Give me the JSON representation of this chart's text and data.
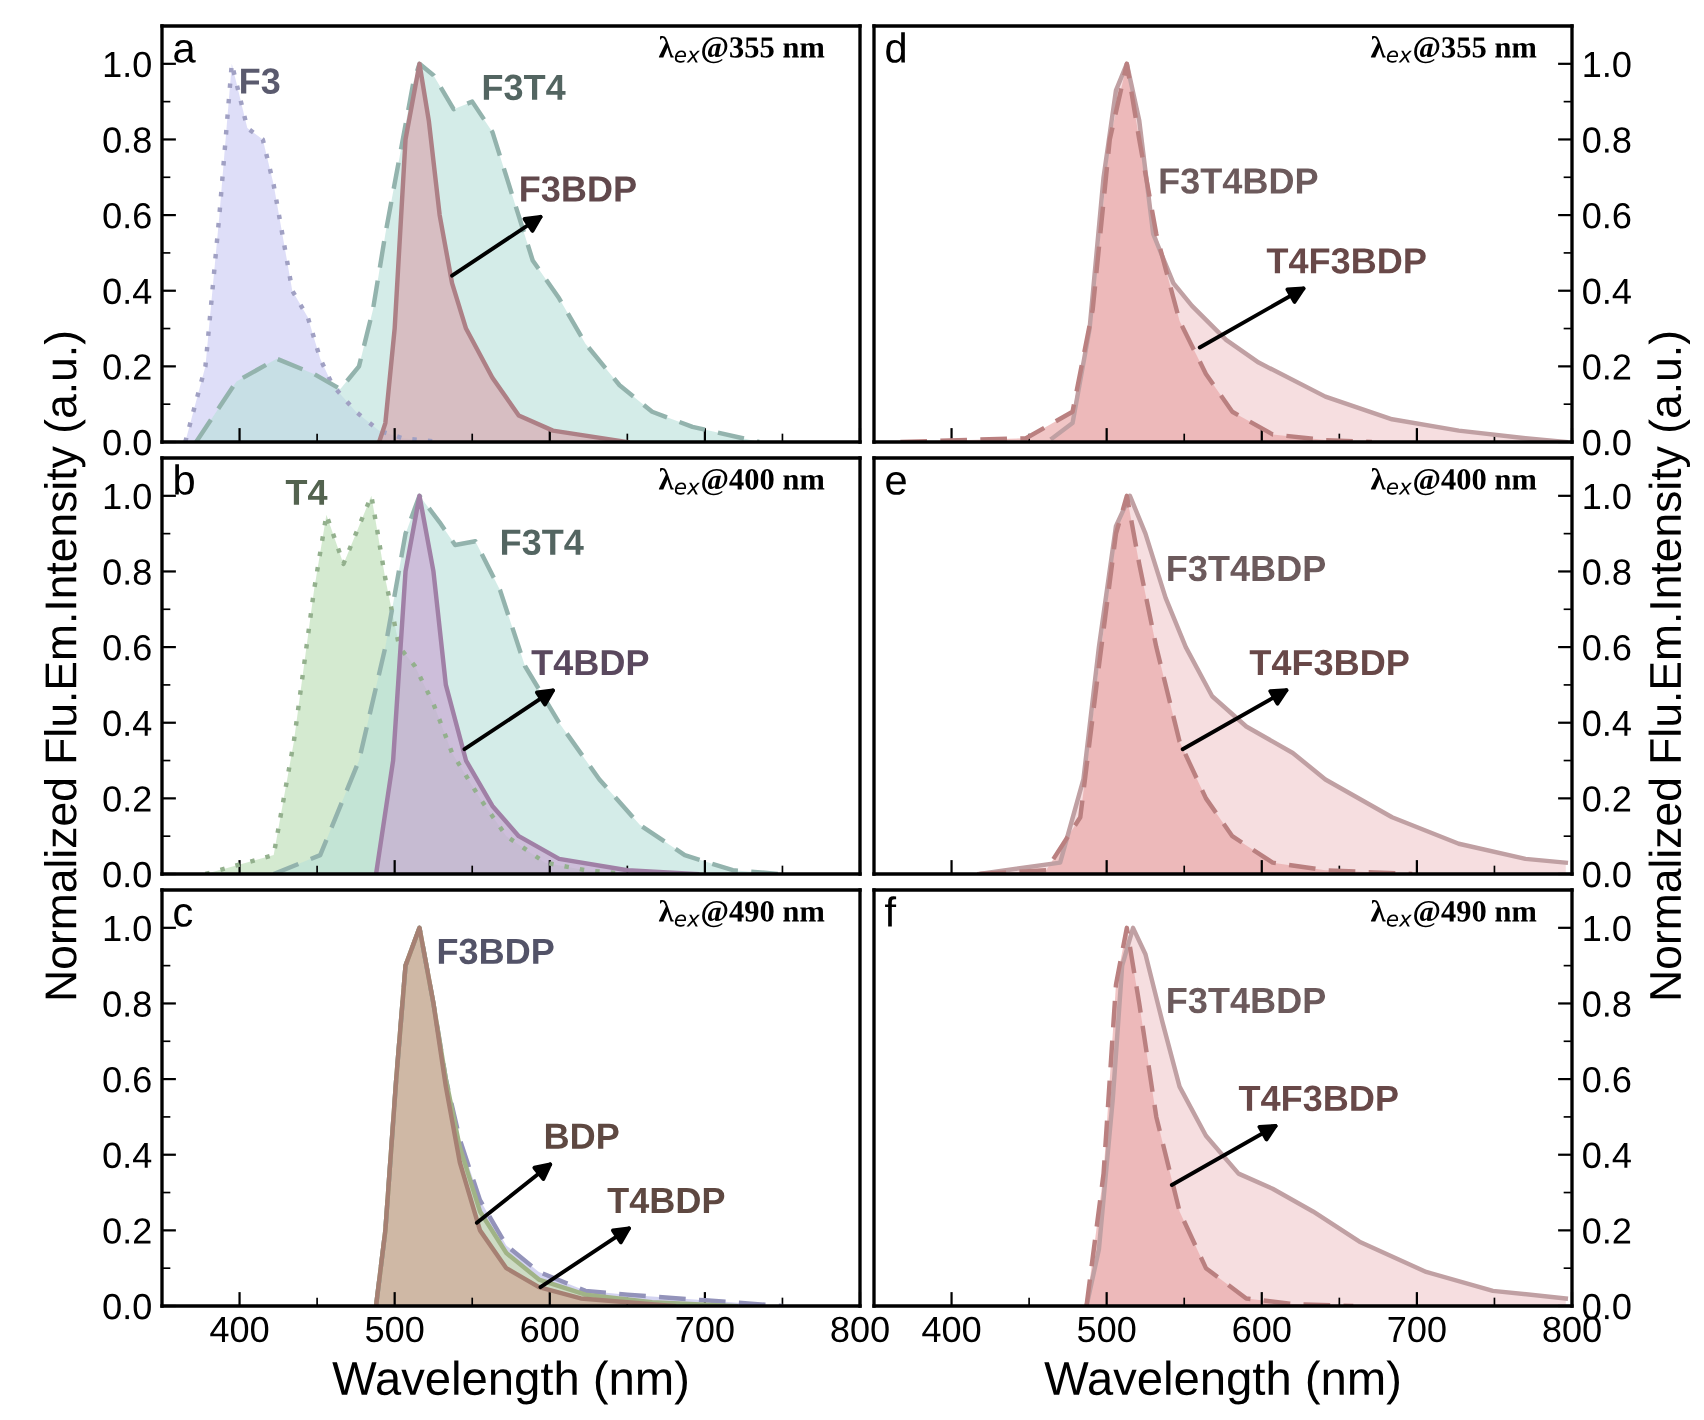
{
  "chart_data": [
    {
      "type": "area",
      "xlim": [
        350,
        800
      ],
      "ylim": [
        0,
        1.1
      ],
      "tick_labels": "y",
      "xticks": [
        400,
        {
          "value": 450,
          "label": null
        },
        500,
        {
          "value": 550,
          "label": null
        },
        600,
        {
          "value": 650,
          "label": null
        },
        700,
        {
          "value": 750,
          "label": null
        },
        800
      ],
      "yticks": [
        {
          "value": 0,
          "label": "0.0"
        },
        {
          "value": 0.1,
          "label": null
        },
        {
          "value": 0.2,
          "label": "0.2"
        },
        {
          "value": 0.3,
          "label": null
        },
        {
          "value": 0.4,
          "label": "0.4"
        },
        {
          "value": 0.5,
          "label": null
        },
        {
          "value": 0.6,
          "label": "0.6"
        },
        {
          "value": 0.7,
          "label": null
        },
        {
          "value": 0.8,
          "label": "0.8"
        },
        {
          "value": 0.9,
          "label": null
        },
        {
          "value": 1.0,
          "label": "1.0"
        }
      ],
      "series": [
        {
          "name": "F3",
          "color": "#c8c8f4",
          "line_style": "dotted",
          "x": [
            365,
            378,
            387,
            395,
            405,
            415,
            422,
            434,
            444,
            452,
            460,
            475,
            490,
            505,
            530
          ],
          "values": [
            0,
            0.2,
            0.6,
            1.0,
            0.83,
            0.8,
            0.68,
            0.4,
            0.33,
            0.22,
            0.15,
            0.08,
            0.03,
            0.01,
            0
          ]
        },
        {
          "name": "F3T4",
          "color": "#b8e0d8",
          "line_style": "dashed",
          "x": [
            372,
            398,
            424,
            448,
            465,
            477,
            486,
            494,
            503,
            512,
            516,
            525,
            538,
            550,
            563,
            576,
            589,
            606,
            623,
            645,
            666,
            692,
            735
          ],
          "values": [
            0,
            0.16,
            0.22,
            0.18,
            0.14,
            0.2,
            0.35,
            0.55,
            0.75,
            0.95,
            1.0,
            0.97,
            0.88,
            0.9,
            0.82,
            0.65,
            0.48,
            0.38,
            0.26,
            0.15,
            0.08,
            0.04,
            0
          ]
        },
        {
          "color": "#d8a0a8",
          "line_style": "solid",
          "x": [
            490,
            494,
            500,
            507,
            516,
            522,
            529,
            537,
            546,
            563,
            580,
            602,
            650
          ],
          "values": [
            0,
            0.05,
            0.3,
            0.8,
            1.0,
            0.85,
            0.6,
            0.42,
            0.3,
            0.17,
            0.07,
            0.03,
            0
          ]
        }
      ],
      "annotations": [
        "a",
        "λ$_{ex}$@355 nm",
        {
          "text": "F3BDP",
          "x": 537,
          "y": 0.44
        }
      ]
    },
    {
      "type": "area",
      "xlim": [
        350,
        800
      ],
      "ylim": [
        0,
        1.1
      ],
      "tick_labels": "y",
      "ylabel": "Normalized Flu.Em.Intensity (a.u.)",
      "xticks": [
        400,
        {
          "value": 450,
          "label": null
        },
        500,
        {
          "value": 550,
          "label": null
        },
        600,
        {
          "value": 650,
          "label": null
        },
        700,
        {
          "value": 750,
          "label": null
        },
        800
      ],
      "yticks": [
        {
          "value": 0,
          "label": "0.0"
        },
        {
          "value": 0.1,
          "label": null
        },
        {
          "value": 0.2,
          "label": "0.2"
        },
        {
          "value": 0.3,
          "label": null
        },
        {
          "value": 0.4,
          "label": "0.4"
        },
        {
          "value": 0.5,
          "label": null
        },
        {
          "value": 0.6,
          "label": "0.6"
        },
        {
          "value": 0.7,
          "label": null
        },
        {
          "value": 0.8,
          "label": "0.8"
        },
        {
          "value": 0.9,
          "label": null
        },
        {
          "value": 1.0,
          "label": "1.0"
        }
      ],
      "series": [
        {
          "name": "T4",
          "color": "#b8dcb0",
          "line_style": "dotted",
          "x": [
            378,
            422,
            435,
            448,
            456,
            467,
            475,
            485,
            494,
            503,
            513,
            525,
            537,
            555,
            572,
            597,
            623,
            650
          ],
          "values": [
            0,
            0.05,
            0.35,
            0.75,
            0.95,
            0.82,
            0.9,
            1.0,
            0.78,
            0.6,
            0.55,
            0.45,
            0.32,
            0.2,
            0.1,
            0.03,
            0.01,
            0
          ]
        },
        {
          "name": "F3T4",
          "color": "#b8e0d8",
          "line_style": "dashed",
          "x": [
            422,
            452,
            477,
            494,
            507,
            516,
            529,
            539,
            552,
            568,
            584,
            606,
            632,
            658,
            687,
            718,
            748
          ],
          "values": [
            0,
            0.05,
            0.3,
            0.6,
            0.9,
            1.0,
            0.93,
            0.87,
            0.88,
            0.75,
            0.55,
            0.4,
            0.25,
            0.13,
            0.05,
            0.01,
            0
          ]
        },
        {
          "color": "#c8a0d0",
          "line_style": "solid",
          "x": [
            488,
            499,
            507,
            516,
            525,
            533,
            546,
            563,
            580,
            606,
            650,
            695
          ],
          "values": [
            0,
            0.3,
            0.8,
            1.0,
            0.8,
            0.5,
            0.3,
            0.18,
            0.1,
            0.04,
            0.01,
            0
          ]
        }
      ],
      "annotations": [
        "b",
        "λ$_{ex}$@400 nm",
        {
          "text": "T4BDP",
          "x": 545,
          "y": 0.33
        }
      ]
    },
    {
      "type": "area",
      "xlim": [
        350,
        800
      ],
      "ylim": [
        0,
        1.1
      ],
      "xlabel": "Wavelength (nm)",
      "xticks": [
        400,
        {
          "value": 450,
          "label": null
        },
        500,
        {
          "value": 550,
          "label": null
        },
        600,
        {
          "value": 650,
          "label": null
        },
        700,
        {
          "value": 750,
          "label": null
        },
        800
      ],
      "yticks": [
        {
          "value": 0,
          "label": "0.0"
        },
        {
          "value": 0.1,
          "label": null
        },
        {
          "value": 0.2,
          "label": "0.2"
        },
        {
          "value": 0.3,
          "label": null
        },
        {
          "value": 0.4,
          "label": "0.4"
        },
        {
          "value": 0.5,
          "label": null
        },
        {
          "value": 0.6,
          "label": "0.6"
        },
        {
          "value": 0.7,
          "label": null
        },
        {
          "value": 0.8,
          "label": "0.8"
        },
        {
          "value": 0.9,
          "label": null
        },
        {
          "value": 1.0,
          "label": "1.0"
        }
      ],
      "series": [
        {
          "name": "F3BDP",
          "color": "#b8b8e8",
          "line_style": "dashed",
          "x": [
            488,
            494,
            501,
            507,
            516,
            525,
            533,
            542,
            555,
            572,
            593,
            623,
            650,
            700,
            750
          ],
          "values": [
            0,
            0.2,
            0.6,
            0.9,
            1.0,
            0.8,
            0.6,
            0.44,
            0.28,
            0.16,
            0.09,
            0.04,
            0.03,
            0.015,
            0
          ]
        },
        {
          "color": "#c8e0a8",
          "line_style": "solid",
          "x": [
            488,
            494,
            501,
            507,
            516,
            525,
            533,
            542,
            555,
            572,
            593,
            623,
            666,
            720
          ],
          "values": [
            0,
            0.2,
            0.6,
            0.9,
            1.0,
            0.8,
            0.6,
            0.42,
            0.25,
            0.14,
            0.07,
            0.03,
            0.01,
            0
          ]
        },
        {
          "color": "#d0a090",
          "line_style": "solid",
          "x": [
            488,
            494,
            501,
            507,
            516,
            525,
            533,
            542,
            555,
            572,
            593,
            620,
            650,
            680
          ],
          "values": [
            0,
            0.2,
            0.6,
            0.9,
            1.0,
            0.8,
            0.58,
            0.38,
            0.2,
            0.1,
            0.05,
            0.02,
            0.01,
            0
          ]
        }
      ],
      "annotations": [
        "c",
        "λ$_{ex}$@490 nm",
        {
          "text": "BDP",
          "x": 553,
          "y": 0.22
        },
        {
          "text": "T4BDP",
          "x": 594,
          "y": 0.05
        }
      ]
    },
    {
      "type": "area",
      "xlim": [
        350,
        800
      ],
      "ylim": [
        0,
        1.1
      ],
      "tick_labels": "y",
      "xticks": [
        400,
        {
          "value": 450,
          "label": null
        },
        500,
        {
          "value": 550,
          "label": null
        },
        600,
        {
          "value": 650,
          "label": null
        },
        700,
        {
          "value": 750,
          "label": null
        },
        800
      ],
      "yticks": [
        {
          "value": 0,
          "label": "0.0"
        },
        {
          "value": 0.1,
          "label": null
        },
        {
          "value": 0.2,
          "label": "0.2"
        },
        {
          "value": 0.3,
          "label": null
        },
        {
          "value": 0.4,
          "label": "0.4"
        },
        {
          "value": 0.5,
          "label": null
        },
        {
          "value": 0.6,
          "label": "0.6"
        },
        {
          "value": 0.7,
          "label": null
        },
        {
          "value": 0.8,
          "label": "0.8"
        },
        {
          "value": 0.9,
          "label": null
        },
        {
          "value": 1.0,
          "label": "1.0"
        }
      ],
      "series": [
        {
          "name": "F3T4BDP",
          "color": "#f0c8cc",
          "line_style": "solid",
          "x": [
            465,
            478,
            489,
            498,
            506,
            513,
            521,
            530,
            543,
            555,
            577,
            598,
            641,
            684,
            727,
            770,
            796
          ],
          "values": [
            0.01,
            0.05,
            0.3,
            0.7,
            0.93,
            1.0,
            0.85,
            0.55,
            0.42,
            0.36,
            0.27,
            0.21,
            0.12,
            0.06,
            0.03,
            0.01,
            0
          ]
        },
        {
          "color": "#e8a0a0",
          "line_style": "dashed",
          "x": [
            367,
            448,
            478,
            491,
            502,
            513,
            521,
            532,
            547,
            564,
            581,
            607,
            641,
            671
          ],
          "values": [
            0,
            0.01,
            0.08,
            0.35,
            0.8,
            1.0,
            0.8,
            0.55,
            0.32,
            0.18,
            0.08,
            0.02,
            0.005,
            0
          ]
        }
      ],
      "annotations": [
        "d",
        "λ$_{ex}$@355 nm",
        {
          "text": "T4F3BDP",
          "x": 560,
          "y": 0.25
        }
      ]
    },
    {
      "type": "area",
      "xlim": [
        350,
        800
      ],
      "ylim": [
        0,
        1.1
      ],
      "tick_labels": "y",
      "ylabel": "Normalized Flu.Em.Intensity (a.u.)",
      "xticks": [
        400,
        {
          "value": 450,
          "label": null
        },
        500,
        {
          "value": 550,
          "label": null
        },
        600,
        {
          "value": 650,
          "label": null
        },
        700,
        {
          "value": 750,
          "label": null
        },
        800
      ],
      "yticks": [
        {
          "value": 0,
          "label": "0.0"
        },
        {
          "value": 0.1,
          "label": null
        },
        {
          "value": 0.2,
          "label": "0.2"
        },
        {
          "value": 0.3,
          "label": null
        },
        {
          "value": 0.4,
          "label": "0.4"
        },
        {
          "value": 0.5,
          "label": null
        },
        {
          "value": 0.6,
          "label": "0.6"
        },
        {
          "value": 0.7,
          "label": null
        },
        {
          "value": 0.8,
          "label": "0.8"
        },
        {
          "value": 0.9,
          "label": null
        },
        {
          "value": 1.0,
          "label": "1.0"
        }
      ],
      "series": [
        {
          "name": "F3T4BDP",
          "color": "#f0c8cc",
          "line_style": "solid",
          "x": [
            418,
            470,
            485,
            495,
            506,
            515,
            525,
            538,
            551,
            568,
            590,
            620,
            641,
            684,
            727,
            770,
            796
          ],
          "values": [
            0,
            0.03,
            0.25,
            0.6,
            0.92,
            1.0,
            0.9,
            0.73,
            0.6,
            0.47,
            0.39,
            0.32,
            0.25,
            0.15,
            0.08,
            0.04,
            0.03
          ]
        },
        {
          "color": "#e8a0a0",
          "line_style": "dashed",
          "x": [
            418,
            461,
            483,
            495,
            506,
            513,
            521,
            532,
            547,
            564,
            581,
            607,
            641,
            697
          ],
          "values": [
            0,
            0.01,
            0.15,
            0.55,
            0.9,
            1.0,
            0.82,
            0.6,
            0.35,
            0.2,
            0.1,
            0.03,
            0.01,
            0
          ]
        }
      ],
      "annotations": [
        "e",
        "λ$_{ex}$@400 nm",
        {
          "text": "T4F3BDP",
          "x": 549,
          "y": 0.33
        }
      ]
    },
    {
      "type": "area",
      "xlim": [
        350,
        800
      ],
      "ylim": [
        0,
        1.1
      ],
      "xlabel": "Wavelength (nm)",
      "xticks": [
        400,
        {
          "value": 450,
          "label": null
        },
        500,
        {
          "value": 550,
          "label": null
        },
        600,
        {
          "value": 650,
          "label": null
        },
        700,
        {
          "value": 750,
          "label": null
        },
        800
      ],
      "yticks": [
        {
          "value": 0,
          "label": "0.0"
        },
        {
          "value": 0.1,
          "label": null
        },
        {
          "value": 0.2,
          "label": "0.2"
        },
        {
          "value": 0.3,
          "label": null
        },
        {
          "value": 0.4,
          "label": "0.4"
        },
        {
          "value": 0.5,
          "label": null
        },
        {
          "value": 0.6,
          "label": "0.6"
        },
        {
          "value": 0.7,
          "label": null
        },
        {
          "value": 0.8,
          "label": "0.8"
        },
        {
          "value": 0.9,
          "label": null
        },
        {
          "value": 1.0,
          "label": "1.0"
        }
      ],
      "series": [
        {
          "name": "F3T4BDP",
          "color": "#f0c8cc",
          "line_style": "solid",
          "x": [
            487,
            495,
            504,
            510,
            517,
            525,
            536,
            547,
            564,
            585,
            607,
            633,
            663,
            706,
            749,
            796
          ],
          "values": [
            0,
            0.15,
            0.55,
            0.9,
            1.0,
            0.93,
            0.75,
            0.58,
            0.45,
            0.35,
            0.31,
            0.25,
            0.17,
            0.09,
            0.04,
            0.02
          ]
        },
        {
          "color": "#e8a0a0",
          "line_style": "dashed",
          "x": [
            487,
            498,
            506,
            513,
            521,
            532,
            547,
            564,
            590,
            620,
            659
          ],
          "values": [
            0,
            0.35,
            0.85,
            1.0,
            0.8,
            0.5,
            0.25,
            0.1,
            0.02,
            0.005,
            0
          ]
        }
      ],
      "annotations": [
        "f",
        "λ$_{ex}$@490 nm",
        {
          "text": "T4F3BDP",
          "x": 542,
          "y": 0.32
        }
      ]
    }
  ]
}
